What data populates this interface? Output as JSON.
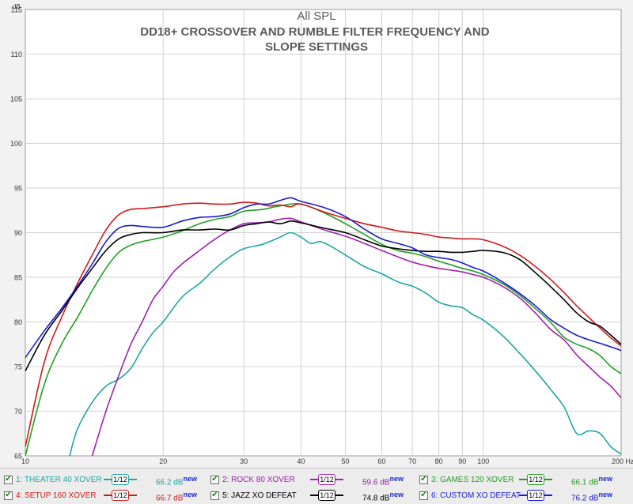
{
  "chart_data": {
    "type": "line",
    "title": "All SPL",
    "subtitle": "DD18+ CROSSOVER AND RUMBLE FILTER FREQUENCY AND SLOPE SETTINGS",
    "ylabel": "dB",
    "xunit": "Hz",
    "xscale": "log",
    "xlim": [
      10,
      200
    ],
    "ylim": [
      65,
      115
    ],
    "x_ticks": [
      10,
      20,
      30,
      40,
      50,
      60,
      70,
      80,
      90,
      100,
      200
    ],
    "x_tick_labels": [
      "10",
      "20",
      "30",
      "40",
      "50",
      "60",
      "70",
      "80",
      "90",
      "100",
      "200 Hz"
    ],
    "y_ticks": [
      65,
      70,
      75,
      80,
      85,
      90,
      95,
      100,
      105,
      110,
      115
    ],
    "y_tick_labels": [
      "65",
      "70",
      "75",
      "80",
      "85",
      "90",
      "95",
      "100",
      "105",
      "110",
      "115"
    ],
    "series": [
      {
        "name": "1: THEATER 40 XOVER",
        "color": "#1fa5a5",
        "level": "66.2 dB",
        "x": [
          12.5,
          13,
          14,
          15,
          16,
          17,
          18,
          19,
          20,
          22,
          24,
          26,
          28,
          30,
          33,
          36,
          38,
          40,
          42,
          44,
          46,
          50,
          55,
          60,
          65,
          70,
          75,
          80,
          85,
          90,
          95,
          100,
          110,
          120,
          130,
          140,
          150,
          160,
          170,
          180,
          190,
          200
        ],
        "y": [
          65,
          68,
          71,
          72.8,
          73.6,
          74.8,
          77,
          78.8,
          80,
          82.8,
          84.3,
          86,
          87.3,
          88.2,
          88.7,
          89.5,
          90,
          89.5,
          88.8,
          89,
          88.6,
          87.5,
          86.2,
          85.4,
          84.5,
          84,
          83.2,
          82.2,
          81.8,
          81.6,
          80.8,
          80.2,
          78.5,
          76.5,
          74.5,
          72.5,
          70.5,
          67.5,
          67.8,
          67.5,
          66,
          65.2
        ]
      },
      {
        "name": "2: ROCK 80 XOVER",
        "color": "#a020b0",
        "level": "59.6 dB",
        "x": [
          14,
          15,
          16,
          17,
          18,
          19,
          20,
          21,
          22,
          24,
          26,
          28,
          30,
          32,
          34,
          36,
          38,
          40,
          45,
          50,
          55,
          60,
          65,
          70,
          75,
          80,
          85,
          90,
          95,
          100,
          110,
          120,
          130,
          140,
          150,
          160,
          170,
          180,
          190,
          200
        ],
        "y": [
          65,
          70,
          74,
          77.5,
          80,
          82.5,
          84,
          85.5,
          86.5,
          88,
          89.3,
          90.3,
          91,
          91.1,
          91.2,
          91.5,
          91.6,
          91.2,
          90.3,
          89.6,
          88.8,
          88,
          87.3,
          86.7,
          86.3,
          86,
          85.8,
          85.6,
          85.3,
          85,
          84,
          82.7,
          81,
          79.2,
          78,
          76.3,
          75,
          73.8,
          72.8,
          71.5
        ]
      },
      {
        "name": "3: GAMES 120 XOVER",
        "color": "#20a020",
        "level": "66.1 dB",
        "x": [
          10,
          11,
          12,
          13,
          14,
          15,
          16,
          17,
          18,
          20,
          22,
          24,
          26,
          28,
          30,
          33,
          36,
          40,
          45,
          50,
          55,
          60,
          65,
          70,
          75,
          80,
          85,
          90,
          95,
          100,
          110,
          120,
          130,
          140,
          150,
          160,
          170,
          180,
          190,
          200
        ],
        "y": [
          65,
          73,
          77.5,
          80.5,
          83.5,
          86,
          87.8,
          88.6,
          89,
          89.5,
          90.2,
          91,
          91.5,
          91.8,
          92.4,
          92.6,
          93,
          93.2,
          92.2,
          91,
          89.8,
          88.7,
          88,
          87.7,
          87.3,
          86.8,
          86.4,
          86,
          85.7,
          85.3,
          84.3,
          83,
          81.5,
          80,
          78.3,
          77.5,
          77,
          76.2,
          75,
          74.2
        ]
      },
      {
        "name": "4: SETUP 160 XOVER",
        "color": "#d01a1a",
        "level": "66.7 dB",
        "x": [
          10,
          11,
          12,
          13,
          14,
          15,
          16,
          17,
          18,
          20,
          22,
          24,
          26,
          28,
          30,
          32,
          34,
          36,
          38,
          40,
          45,
          50,
          55,
          60,
          65,
          70,
          75,
          80,
          85,
          90,
          95,
          100,
          110,
          120,
          130,
          140,
          150,
          160,
          170,
          180,
          190,
          200
        ],
        "y": [
          66,
          75.5,
          80.5,
          84.3,
          87.5,
          90.3,
          92,
          92.6,
          92.7,
          92.9,
          93.2,
          93.3,
          93.2,
          93.2,
          93.4,
          93.3,
          93,
          93.1,
          92.9,
          93.2,
          92.3,
          91.6,
          91,
          90.6,
          90.2,
          90,
          89.8,
          89.5,
          89.4,
          89.3,
          89.3,
          89.2,
          88.5,
          87.5,
          86.2,
          84.8,
          83.3,
          81.8,
          80.5,
          79.3,
          78.2,
          77.3
        ]
      },
      {
        "name": "5: JAZZ XO DEFEAT",
        "color": "#000000",
        "level": "74.8 dB",
        "x": [
          10,
          11,
          12,
          13,
          14,
          15,
          16,
          17,
          18,
          20,
          22,
          24,
          26,
          28,
          30,
          32,
          34,
          36,
          38,
          40,
          45,
          50,
          55,
          60,
          65,
          70,
          75,
          80,
          85,
          90,
          95,
          100,
          110,
          120,
          130,
          140,
          150,
          160,
          170,
          180,
          190,
          200
        ],
        "y": [
          74.5,
          78.5,
          81.2,
          83.8,
          86,
          88,
          89.3,
          89.8,
          90,
          90,
          90.3,
          90.3,
          90.4,
          90.3,
          90.8,
          91,
          91.2,
          91,
          91.3,
          91.1,
          90.5,
          90,
          89.2,
          88.5,
          88.2,
          88,
          87.9,
          87.9,
          87.8,
          87.8,
          87.9,
          88,
          87.8,
          87,
          85.5,
          84,
          82.5,
          81,
          80,
          79.5,
          78.5,
          77.5
        ]
      },
      {
        "name": "6: CUSTOM XO DEFEAT",
        "color": "#1a1ad0",
        "level": "76.2 dB",
        "x": [
          10,
          11,
          12,
          13,
          14,
          15,
          16,
          17,
          18,
          20,
          22,
          24,
          26,
          28,
          30,
          32,
          34,
          36,
          38,
          40,
          45,
          50,
          55,
          60,
          65,
          70,
          75,
          80,
          85,
          90,
          95,
          100,
          110,
          120,
          130,
          140,
          150,
          160,
          170,
          180,
          190,
          200
        ],
        "y": [
          76,
          79,
          81.5,
          84,
          86.5,
          89,
          90.5,
          90.8,
          90.7,
          90.6,
          91.3,
          91.7,
          91.8,
          92.1,
          92.8,
          93.2,
          93.2,
          93.6,
          93.9,
          93.5,
          92.8,
          91.8,
          90.4,
          89.3,
          88.8,
          88.3,
          87.5,
          87.2,
          87,
          86.6,
          86.1,
          85.7,
          84.5,
          83.2,
          81.8,
          80.3,
          79.3,
          78.5,
          78,
          77.6,
          77.2,
          76.8
        ]
      }
    ]
  },
  "legend": {
    "smoothing": "1/12",
    "new_tag": "new"
  }
}
